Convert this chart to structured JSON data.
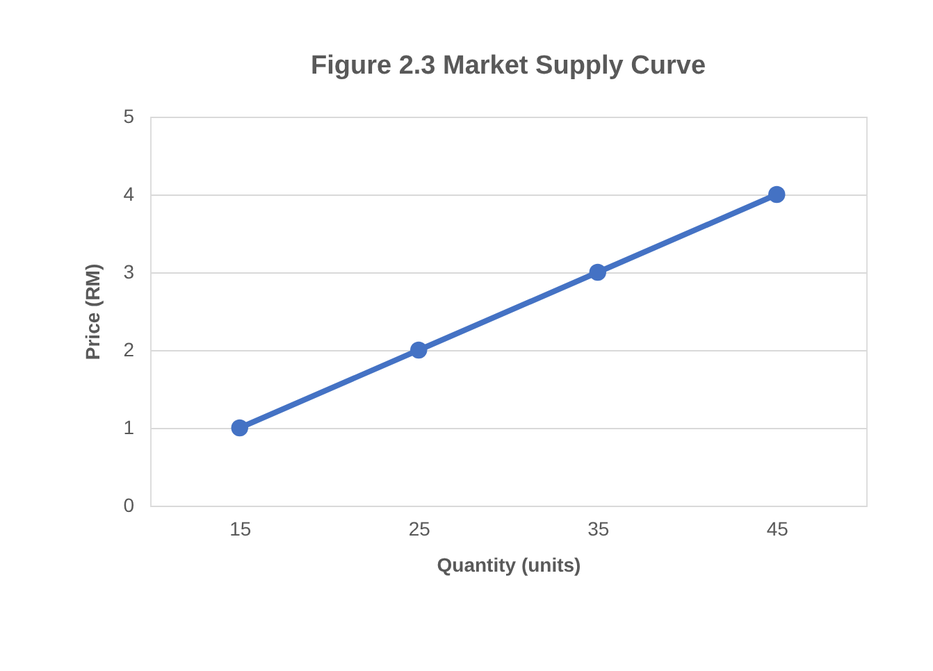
{
  "chart_data": {
    "type": "line",
    "title": "Figure 2.3 Market Supply Curve",
    "xlabel": "Quantity (units)",
    "ylabel": "Price (RM)",
    "categories": [
      "15",
      "25",
      "35",
      "45"
    ],
    "series": [
      {
        "color": "#4472c4",
        "values": [
          1,
          2,
          3,
          4
        ]
      }
    ],
    "ylim": [
      0,
      5
    ],
    "yticks": [
      0,
      1,
      2,
      3,
      4,
      5
    ],
    "grid": "y",
    "marker": "circle",
    "line_style": "solid"
  }
}
